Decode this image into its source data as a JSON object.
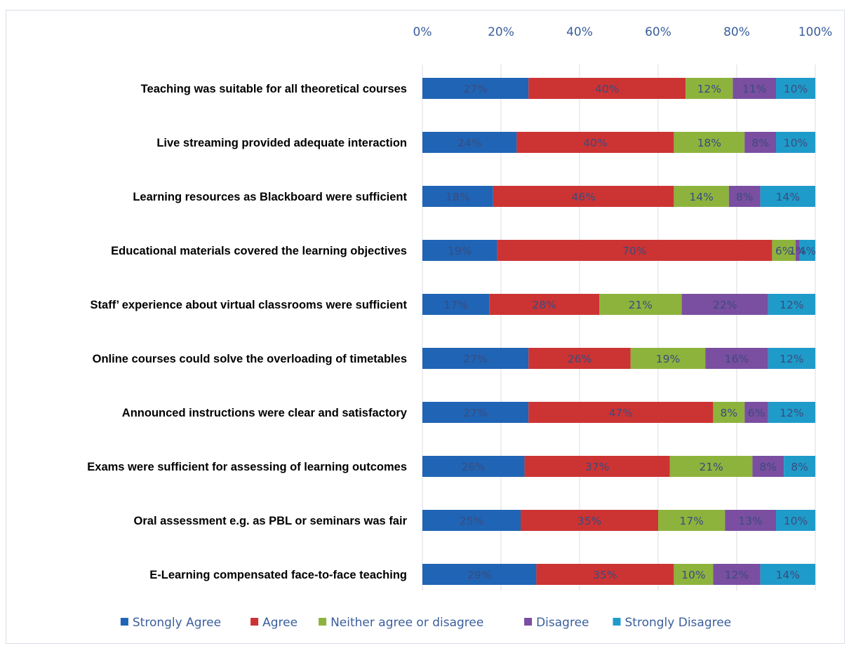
{
  "chart_data": {
    "type": "bar",
    "orientation": "horizontal",
    "stacked": true,
    "percent_stacked": true,
    "title": "",
    "xlabel": "",
    "ylabel": "",
    "xlim": [
      0,
      100
    ],
    "x_ticks": [
      "0%",
      "20%",
      "40%",
      "60%",
      "80%",
      "100%"
    ],
    "x_axis_position": "top",
    "grid": true,
    "legend_position": "bottom",
    "categories": [
      "Teaching was suitable for all theoretical courses",
      "Live streaming provided adequate interaction",
      "Learning resources as Blackboard were sufficient",
      "Educational materials covered the learning objectives",
      "Staff’ experience about virtual classrooms were sufficient",
      "Online courses could solve the overloading of timetables",
      "Announced instructions were clear and satisfactory",
      "Exams were sufficient for assessing of learning outcomes",
      "Oral assessment e.g. as PBL or seminars was fair",
      "E-Learning compensated face-to-face teaching"
    ],
    "series": [
      {
        "name": "Strongly Agree",
        "color": "#1f64b5",
        "values": [
          27,
          24,
          18,
          19,
          17,
          27,
          27,
          26,
          25,
          29
        ],
        "labels": [
          "27%",
          "24%",
          "18%",
          "19%",
          "17%",
          "27%",
          "27%",
          "26%",
          "25%",
          "29%"
        ]
      },
      {
        "name": "Agree",
        "color": "#cc3333",
        "values": [
          40,
          40,
          46,
          70,
          28,
          26,
          47,
          37,
          35,
          35
        ],
        "labels": [
          "40%",
          "40%",
          "46%",
          "70%",
          "28%",
          "26%",
          "47%",
          "37%",
          "35%",
          "35%"
        ]
      },
      {
        "name": "Neither agree or disagree",
        "color": "#8db33d",
        "values": [
          12,
          18,
          14,
          6,
          21,
          19,
          8,
          21,
          17,
          10
        ],
        "labels": [
          "12%",
          "18%",
          "14%",
          "6%",
          "21%",
          "19%",
          "8%",
          "21%",
          "17%",
          "10%"
        ]
      },
      {
        "name": "Disagree",
        "color": "#7a4ea0",
        "values": [
          11,
          8,
          8,
          1,
          22,
          16,
          6,
          8,
          13,
          12
        ],
        "labels": [
          "11%",
          "8%",
          "8%",
          "1%",
          "22%",
          "16%",
          "6%",
          "8%",
          "13%",
          "12%"
        ]
      },
      {
        "name": "Strongly Disagree",
        "color": "#1f9bc9",
        "values": [
          10,
          10,
          14,
          4,
          12,
          12,
          12,
          8,
          10,
          14
        ],
        "labels": [
          "10%",
          "10%",
          "14%",
          "4%",
          "12%",
          "12%",
          "12%",
          "8%",
          "10%",
          "14%"
        ]
      }
    ]
  }
}
